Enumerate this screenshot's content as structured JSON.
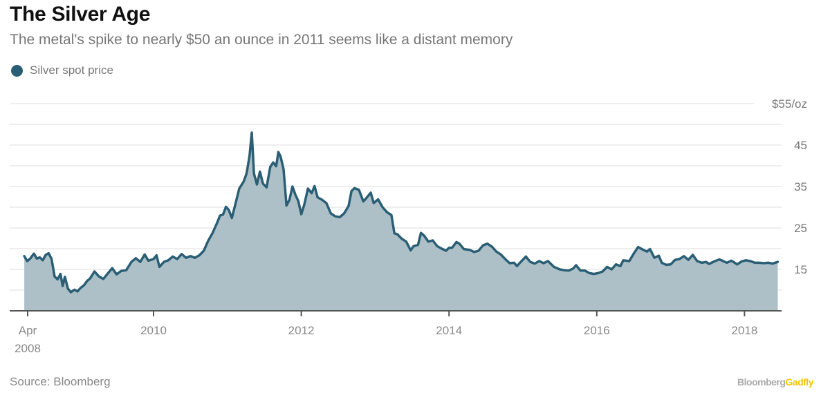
{
  "header": {
    "title": "The Silver Age",
    "subtitle": "The metal's spike to nearly $50 an ounce in 2011 seems like a distant memory"
  },
  "footer": {
    "source": "Source: Bloomberg",
    "brand_part1": "Bloomberg",
    "brand_part2": "Gadfly",
    "brand_accent_color": "#f2c500"
  },
  "chart_data": {
    "type": "area",
    "title": "The Silver Age",
    "subtitle": "The metal's spike to nearly $50 an ounce in 2011 seems like a distant memory",
    "xlabel": "",
    "ylabel": "$/oz",
    "ylim": [
      5,
      55
    ],
    "xlim": [
      2008.25,
      2018.45
    ],
    "grid": true,
    "legend": {
      "placement": "top-left",
      "entries": [
        "Silver spot price"
      ]
    },
    "y_ticks": [
      {
        "value": 55,
        "label": "$55/oz"
      },
      {
        "value": 45,
        "label": "45"
      },
      {
        "value": 35,
        "label": "35"
      },
      {
        "value": 25,
        "label": "25"
      },
      {
        "value": 15,
        "label": "15"
      }
    ],
    "y_gridlines": [
      10,
      15,
      20,
      25,
      30,
      35,
      40,
      45,
      50,
      55
    ],
    "x_ticks": [
      {
        "value": 2008.25,
        "label": "Apr",
        "label2": "2008"
      },
      {
        "value": 2010,
        "label": "2010"
      },
      {
        "value": 2012,
        "label": "2012"
      },
      {
        "value": 2014,
        "label": "2014"
      },
      {
        "value": 2016,
        "label": "2016"
      },
      {
        "value": 2018,
        "label": "2018"
      }
    ],
    "colors": {
      "line": "#2a5e75",
      "fill": "#adc0c8",
      "grid": "#eeeeee",
      "axis": "#555555"
    },
    "series": [
      {
        "name": "Silver spot price",
        "points": [
          [
            2008.25,
            18.2
          ],
          [
            2008.29,
            17.0
          ],
          [
            2008.33,
            17.6
          ],
          [
            2008.38,
            18.8
          ],
          [
            2008.42,
            17.6
          ],
          [
            2008.46,
            17.9
          ],
          [
            2008.5,
            17.2
          ],
          [
            2008.54,
            18.5
          ],
          [
            2008.58,
            18.9
          ],
          [
            2008.62,
            17.5
          ],
          [
            2008.66,
            13.3
          ],
          [
            2008.7,
            12.6
          ],
          [
            2008.74,
            13.9
          ],
          [
            2008.77,
            11.0
          ],
          [
            2008.8,
            13.2
          ],
          [
            2008.84,
            10.4
          ],
          [
            2008.88,
            9.5
          ],
          [
            2008.93,
            10.1
          ],
          [
            2008.97,
            9.7
          ],
          [
            2009.01,
            10.5
          ],
          [
            2009.06,
            11.2
          ],
          [
            2009.1,
            12.2
          ],
          [
            2009.14,
            12.8
          ],
          [
            2009.2,
            14.5
          ],
          [
            2009.26,
            13.3
          ],
          [
            2009.32,
            12.7
          ],
          [
            2009.38,
            14.0
          ],
          [
            2009.44,
            15.3
          ],
          [
            2009.5,
            13.8
          ],
          [
            2009.56,
            14.6
          ],
          [
            2009.63,
            14.8
          ],
          [
            2009.7,
            16.8
          ],
          [
            2009.76,
            17.7
          ],
          [
            2009.82,
            16.8
          ],
          [
            2009.88,
            18.6
          ],
          [
            2009.93,
            17.1
          ],
          [
            2010.0,
            17.5
          ],
          [
            2010.04,
            18.4
          ],
          [
            2010.08,
            15.6
          ],
          [
            2010.14,
            16.8
          ],
          [
            2010.2,
            17.2
          ],
          [
            2010.26,
            18.1
          ],
          [
            2010.32,
            17.5
          ],
          [
            2010.38,
            18.7
          ],
          [
            2010.44,
            17.8
          ],
          [
            2010.5,
            18.2
          ],
          [
            2010.56,
            17.8
          ],
          [
            2010.62,
            18.4
          ],
          [
            2010.68,
            19.5
          ],
          [
            2010.74,
            21.9
          ],
          [
            2010.8,
            23.8
          ],
          [
            2010.86,
            26.2
          ],
          [
            2010.9,
            28.0
          ],
          [
            2010.94,
            28.2
          ],
          [
            2010.98,
            30.1
          ],
          [
            2011.02,
            29.3
          ],
          [
            2011.06,
            27.4
          ],
          [
            2011.1,
            30.2
          ],
          [
            2011.16,
            34.5
          ],
          [
            2011.22,
            36.2
          ],
          [
            2011.26,
            38.2
          ],
          [
            2011.3,
            42.4
          ],
          [
            2011.33,
            48.0
          ],
          [
            2011.36,
            38.1
          ],
          [
            2011.4,
            35.5
          ],
          [
            2011.44,
            38.6
          ],
          [
            2011.48,
            35.7
          ],
          [
            2011.53,
            34.8
          ],
          [
            2011.58,
            39.7
          ],
          [
            2011.62,
            40.8
          ],
          [
            2011.66,
            39.9
          ],
          [
            2011.69,
            43.3
          ],
          [
            2011.72,
            42.2
          ],
          [
            2011.76,
            39.1
          ],
          [
            2011.8,
            30.4
          ],
          [
            2011.84,
            31.8
          ],
          [
            2011.88,
            35.0
          ],
          [
            2011.92,
            33.0
          ],
          [
            2011.96,
            31.5
          ],
          [
            2012.0,
            28.3
          ],
          [
            2012.04,
            30.6
          ],
          [
            2012.09,
            34.5
          ],
          [
            2012.14,
            33.4
          ],
          [
            2012.18,
            35.1
          ],
          [
            2012.22,
            32.4
          ],
          [
            2012.28,
            31.8
          ],
          [
            2012.34,
            31.0
          ],
          [
            2012.4,
            28.5
          ],
          [
            2012.46,
            27.8
          ],
          [
            2012.52,
            27.6
          ],
          [
            2012.58,
            28.5
          ],
          [
            2012.64,
            30.3
          ],
          [
            2012.68,
            33.9
          ],
          [
            2012.72,
            34.6
          ],
          [
            2012.78,
            34.2
          ],
          [
            2012.84,
            31.4
          ],
          [
            2012.88,
            32.2
          ],
          [
            2012.94,
            33.5
          ],
          [
            2012.98,
            31.0
          ],
          [
            2013.04,
            31.9
          ],
          [
            2013.1,
            30.0
          ],
          [
            2013.16,
            28.8
          ],
          [
            2013.22,
            28.1
          ],
          [
            2013.26,
            23.7
          ],
          [
            2013.3,
            23.5
          ],
          [
            2013.36,
            22.4
          ],
          [
            2013.42,
            21.7
          ],
          [
            2013.48,
            19.6
          ],
          [
            2013.52,
            20.6
          ],
          [
            2013.58,
            20.9
          ],
          [
            2013.62,
            23.8
          ],
          [
            2013.66,
            23.2
          ],
          [
            2013.72,
            21.7
          ],
          [
            2013.78,
            22.0
          ],
          [
            2013.84,
            20.6
          ],
          [
            2013.9,
            20.0
          ],
          [
            2013.96,
            19.5
          ],
          [
            2014.0,
            20.2
          ],
          [
            2014.04,
            20.2
          ],
          [
            2014.1,
            21.6
          ],
          [
            2014.14,
            21.2
          ],
          [
            2014.2,
            19.9
          ],
          [
            2014.28,
            19.7
          ],
          [
            2014.34,
            19.2
          ],
          [
            2014.4,
            19.5
          ],
          [
            2014.46,
            20.8
          ],
          [
            2014.52,
            21.2
          ],
          [
            2014.58,
            20.5
          ],
          [
            2014.64,
            19.3
          ],
          [
            2014.7,
            18.6
          ],
          [
            2014.76,
            17.5
          ],
          [
            2014.82,
            16.5
          ],
          [
            2014.88,
            16.6
          ],
          [
            2014.92,
            15.8
          ],
          [
            2014.96,
            16.6
          ],
          [
            2015.04,
            18.1
          ],
          [
            2015.1,
            16.8
          ],
          [
            2015.16,
            16.4
          ],
          [
            2015.22,
            17.0
          ],
          [
            2015.28,
            16.5
          ],
          [
            2015.34,
            17.0
          ],
          [
            2015.42,
            15.6
          ],
          [
            2015.5,
            15.0
          ],
          [
            2015.56,
            14.8
          ],
          [
            2015.62,
            14.7
          ],
          [
            2015.68,
            15.2
          ],
          [
            2015.72,
            16.0
          ],
          [
            2015.78,
            14.7
          ],
          [
            2015.84,
            14.7
          ],
          [
            2015.9,
            14.1
          ],
          [
            2015.96,
            13.9
          ],
          [
            2016.02,
            14.1
          ],
          [
            2016.08,
            14.5
          ],
          [
            2016.14,
            15.6
          ],
          [
            2016.2,
            15.0
          ],
          [
            2016.26,
            16.2
          ],
          [
            2016.32,
            15.8
          ],
          [
            2016.36,
            17.2
          ],
          [
            2016.44,
            17.0
          ],
          [
            2016.5,
            18.8
          ],
          [
            2016.56,
            20.4
          ],
          [
            2016.62,
            19.8
          ],
          [
            2016.68,
            19.3
          ],
          [
            2016.72,
            19.9
          ],
          [
            2016.78,
            17.8
          ],
          [
            2016.84,
            18.3
          ],
          [
            2016.88,
            16.6
          ],
          [
            2016.94,
            16.1
          ],
          [
            2017.0,
            16.2
          ],
          [
            2017.06,
            17.3
          ],
          [
            2017.12,
            17.5
          ],
          [
            2017.18,
            18.2
          ],
          [
            2017.24,
            17.3
          ],
          [
            2017.3,
            18.5
          ],
          [
            2017.36,
            17.0
          ],
          [
            2017.42,
            16.6
          ],
          [
            2017.48,
            16.8
          ],
          [
            2017.52,
            16.3
          ],
          [
            2017.6,
            17.0
          ],
          [
            2017.66,
            17.4
          ],
          [
            2017.7,
            17.1
          ],
          [
            2017.76,
            16.6
          ],
          [
            2017.82,
            17.1
          ],
          [
            2017.86,
            16.7
          ],
          [
            2017.9,
            16.2
          ],
          [
            2017.96,
            16.9
          ],
          [
            2018.02,
            17.2
          ],
          [
            2018.08,
            17.0
          ],
          [
            2018.14,
            16.6
          ],
          [
            2018.2,
            16.6
          ],
          [
            2018.26,
            16.5
          ],
          [
            2018.32,
            16.6
          ],
          [
            2018.38,
            16.4
          ],
          [
            2018.45,
            16.8
          ]
        ]
      }
    ]
  }
}
